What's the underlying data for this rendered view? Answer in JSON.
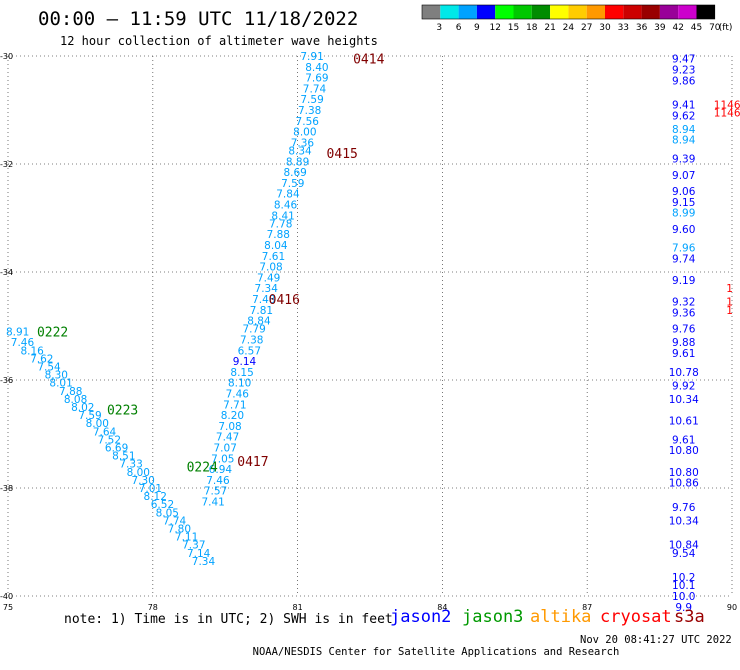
{
  "header": {
    "title": "00:00 – 11:59 UTC 11/18/2022",
    "subtitle": "12 hour collection of altimeter wave heights"
  },
  "colorbar": {
    "unit": "(ft)",
    "ticks": [
      "3",
      "6",
      "9",
      "12",
      "15",
      "18",
      "21",
      "24",
      "27",
      "30",
      "33",
      "36",
      "39",
      "42",
      "45",
      "70"
    ],
    "colors": [
      "#7f7f7f",
      "#00e8e8",
      "#00a2ff",
      "#0000ff",
      "#00ff00",
      "#00c800",
      "#008c00",
      "#ffff00",
      "#ffcc00",
      "#ff9900",
      "#ff0000",
      "#cc0000",
      "#990000",
      "#990099",
      "#cc00cc",
      "#000000"
    ]
  },
  "chart_data": {
    "type": "scatter",
    "xlim": [
      75,
      90
    ],
    "ylim": [
      -40,
      -30
    ],
    "xticks": [
      "75",
      "78",
      "81",
      "84",
      "87",
      "90"
    ],
    "yticks": [
      "-30",
      "-32",
      "-34",
      "-36",
      "-38",
      "-40"
    ],
    "grid": true,
    "series": [
      {
        "name": "jason2",
        "color": "#0000ff",
        "points": []
      },
      {
        "name": "jason3",
        "color": "#009900",
        "points": [
          {
            "x": 75.2,
            "y": -35.1,
            "v": "8.91"
          },
          {
            "x": 75.3,
            "y": -35.3,
            "v": "7.46"
          },
          {
            "x": 75.5,
            "y": -35.45,
            "v": "8.16"
          },
          {
            "x": 75.7,
            "y": -35.6,
            "v": "7.62"
          },
          {
            "x": 75.85,
            "y": -35.75,
            "v": "7.54"
          },
          {
            "x": 76.0,
            "y": -35.9,
            "v": "8.30"
          },
          {
            "x": 76.1,
            "y": -36.05,
            "v": "8.01"
          },
          {
            "x": 76.3,
            "y": -36.2,
            "v": "7.88"
          },
          {
            "x": 76.4,
            "y": -36.35,
            "v": "8.08"
          },
          {
            "x": 76.55,
            "y": -36.5,
            "v": "8.02"
          },
          {
            "x": 76.7,
            "y": -36.65,
            "v": "7.59"
          },
          {
            "x": 76.85,
            "y": -36.8,
            "v": "8.00"
          },
          {
            "x": 77.0,
            "y": -36.95,
            "v": "7.64"
          },
          {
            "x": 77.1,
            "y": -37.1,
            "v": "7.52"
          },
          {
            "x": 77.25,
            "y": -37.25,
            "v": "6.69"
          },
          {
            "x": 77.4,
            "y": -37.4,
            "v": "8.51"
          },
          {
            "x": 77.55,
            "y": -37.55,
            "v": "7.33"
          },
          {
            "x": 77.7,
            "y": -37.7,
            "v": "8.00"
          },
          {
            "x": 77.8,
            "y": -37.85,
            "v": "7.30"
          },
          {
            "x": 77.95,
            "y": -38.0,
            "v": "7.01"
          },
          {
            "x": 78.05,
            "y": -38.15,
            "v": "8.12"
          },
          {
            "x": 78.2,
            "y": -38.3,
            "v": "6.52"
          },
          {
            "x": 78.3,
            "y": -38.45,
            "v": "8.05"
          },
          {
            "x": 78.45,
            "y": -38.6,
            "v": "7.74"
          },
          {
            "x": 78.55,
            "y": -38.75,
            "v": "7.80"
          },
          {
            "x": 78.7,
            "y": -38.9,
            "v": "7.11"
          },
          {
            "x": 78.85,
            "y": -39.05,
            "v": "7.37"
          },
          {
            "x": 78.95,
            "y": -39.2,
            "v": "7.14"
          },
          {
            "x": 79.05,
            "y": -39.35,
            "v": "7.34"
          }
        ]
      },
      {
        "name": "altika",
        "color": "#ff9900",
        "points": []
      },
      {
        "name": "cryosat",
        "color": "#ff0000",
        "points": [
          {
            "x": 89.9,
            "y": -30.9,
            "v": "1146"
          },
          {
            "x": 89.9,
            "y": -31.05,
            "v": "1146"
          },
          {
            "x": 89.95,
            "y": -34.3,
            "v": "1"
          },
          {
            "x": 89.95,
            "y": -34.55,
            "v": "1"
          },
          {
            "x": 89.95,
            "y": -34.7,
            "v": "1"
          }
        ]
      },
      {
        "name": "s3a",
        "color": "#990000",
        "points": [
          {
            "x": 81.3,
            "y": -30.0,
            "v": "7.91"
          },
          {
            "x": 81.4,
            "y": -30.2,
            "v": "8.40"
          },
          {
            "x": 81.4,
            "y": -30.4,
            "v": "7.69"
          },
          {
            "x": 81.35,
            "y": -30.6,
            "v": "7.74"
          },
          {
            "x": 81.3,
            "y": -30.8,
            "v": "7.59"
          },
          {
            "x": 81.25,
            "y": -31.0,
            "v": "7.38"
          },
          {
            "x": 81.2,
            "y": -31.2,
            "v": "7.56"
          },
          {
            "x": 81.15,
            "y": -31.4,
            "v": "8.00"
          },
          {
            "x": 81.1,
            "y": -31.6,
            "v": "7.36"
          },
          {
            "x": 81.05,
            "y": -31.75,
            "v": "8.34"
          },
          {
            "x": 81.0,
            "y": -31.95,
            "v": "8.89"
          },
          {
            "x": 80.95,
            "y": -32.15,
            "v": "8.69"
          },
          {
            "x": 80.9,
            "y": -32.35,
            "v": "7.59"
          },
          {
            "x": 80.8,
            "y": -32.55,
            "v": "7.84"
          },
          {
            "x": 80.75,
            "y": -32.75,
            "v": "8.46"
          },
          {
            "x": 80.7,
            "y": -32.95,
            "v": "8.41"
          },
          {
            "x": 80.65,
            "y": -33.1,
            "v": "7.78"
          },
          {
            "x": 80.6,
            "y": -33.3,
            "v": "7.88"
          },
          {
            "x": 80.55,
            "y": -33.5,
            "v": "8.04"
          },
          {
            "x": 80.5,
            "y": -33.7,
            "v": "7.61"
          },
          {
            "x": 80.45,
            "y": -33.9,
            "v": "7.08"
          },
          {
            "x": 80.4,
            "y": -34.1,
            "v": "7.49"
          },
          {
            "x": 80.35,
            "y": -34.3,
            "v": "7.34"
          },
          {
            "x": 80.3,
            "y": -34.5,
            "v": "7.48"
          },
          {
            "x": 80.25,
            "y": -34.7,
            "v": "7.81"
          },
          {
            "x": 80.2,
            "y": -34.9,
            "v": "8.84"
          },
          {
            "x": 80.1,
            "y": -35.05,
            "v": "7.79"
          },
          {
            "x": 80.05,
            "y": -35.25,
            "v": "7.38"
          },
          {
            "x": 80.0,
            "y": -35.45,
            "v": "6.57"
          },
          {
            "x": 79.9,
            "y": -35.65,
            "v": "9.14"
          },
          {
            "x": 79.85,
            "y": -35.85,
            "v": "8.15"
          },
          {
            "x": 79.8,
            "y": -36.05,
            "v": "8.10"
          },
          {
            "x": 79.75,
            "y": -36.25,
            "v": "7.46"
          },
          {
            "x": 79.7,
            "y": -36.45,
            "v": "7.71"
          },
          {
            "x": 79.65,
            "y": -36.65,
            "v": "8.20"
          },
          {
            "x": 79.6,
            "y": -36.85,
            "v": "7.08"
          },
          {
            "x": 79.55,
            "y": -37.05,
            "v": "7.47"
          },
          {
            "x": 79.5,
            "y": -37.25,
            "v": "7.07"
          },
          {
            "x": 79.45,
            "y": -37.45,
            "v": "7.05"
          },
          {
            "x": 79.4,
            "y": -37.65,
            "v": "6.94"
          },
          {
            "x": 79.35,
            "y": -37.85,
            "v": "7.46"
          },
          {
            "x": 79.3,
            "y": -38.05,
            "v": "7.57"
          },
          {
            "x": 79.25,
            "y": -38.25,
            "v": "7.41"
          },
          {
            "x": 89.0,
            "y": -30.05,
            "v": "9.47"
          },
          {
            "x": 89.0,
            "y": -30.25,
            "v": "9.23"
          },
          {
            "x": 89.0,
            "y": -30.45,
            "v": "9.86"
          },
          {
            "x": 89.0,
            "y": -30.9,
            "v": "9.41"
          },
          {
            "x": 89.0,
            "y": -31.1,
            "v": "9.62"
          },
          {
            "x": 89.0,
            "y": -31.35,
            "v": "8.94"
          },
          {
            "x": 89.0,
            "y": -31.55,
            "v": "8.94"
          },
          {
            "x": 89.0,
            "y": -31.9,
            "v": "9.39"
          },
          {
            "x": 89.0,
            "y": -32.2,
            "v": "9.07"
          },
          {
            "x": 89.0,
            "y": -32.5,
            "v": "9.06"
          },
          {
            "x": 89.0,
            "y": -32.7,
            "v": "9.15"
          },
          {
            "x": 89.0,
            "y": -32.9,
            "v": "8.99"
          },
          {
            "x": 89.0,
            "y": -33.2,
            "v": "9.60"
          },
          {
            "x": 89.0,
            "y": -33.55,
            "v": "7.96"
          },
          {
            "x": 89.0,
            "y": -33.75,
            "v": "9.74"
          },
          {
            "x": 89.0,
            "y": -34.15,
            "v": "9.19"
          },
          {
            "x": 89.0,
            "y": -34.55,
            "v": "9.32"
          },
          {
            "x": 89.0,
            "y": -34.75,
            "v": "9.36"
          },
          {
            "x": 89.0,
            "y": -35.05,
            "v": "9.76"
          },
          {
            "x": 89.0,
            "y": -35.3,
            "v": "9.88"
          },
          {
            "x": 89.0,
            "y": -35.5,
            "v": "9.61"
          },
          {
            "x": 89.0,
            "y": -35.85,
            "v": "10.78"
          },
          {
            "x": 89.0,
            "y": -36.1,
            "v": "9.92"
          },
          {
            "x": 89.0,
            "y": -36.35,
            "v": "10.34"
          },
          {
            "x": 89.0,
            "y": -36.75,
            "v": "10.61"
          },
          {
            "x": 89.0,
            "y": -37.1,
            "v": "9.61"
          },
          {
            "x": 89.0,
            "y": -37.3,
            "v": "10.80"
          },
          {
            "x": 89.0,
            "y": -37.7,
            "v": "10.80"
          },
          {
            "x": 89.0,
            "y": -37.9,
            "v": "10.86"
          },
          {
            "x": 89.0,
            "y": -38.35,
            "v": "9.76"
          },
          {
            "x": 89.0,
            "y": -38.6,
            "v": "10.34"
          },
          {
            "x": 89.0,
            "y": -39.05,
            "v": "10.84"
          },
          {
            "x": 89.0,
            "y": -39.2,
            "v": "9.54"
          },
          {
            "x": 89.0,
            "y": -39.65,
            "v": "10.2"
          },
          {
            "x": 89.0,
            "y": -39.8,
            "v": "10.1"
          },
          {
            "x": 89.0,
            "y": -40.0,
            "v": "10.0"
          },
          {
            "x": 89.0,
            "y": -40.2,
            "v": "9.9"
          }
        ]
      }
    ],
    "time_labels": [
      {
        "x": 82.15,
        "y": -30.05,
        "text": "0414",
        "color": "#800000"
      },
      {
        "x": 81.6,
        "y": -31.8,
        "text": "0415",
        "color": "#800000"
      },
      {
        "x": 80.4,
        "y": -34.5,
        "text": "0416",
        "color": "#800000"
      },
      {
        "x": 79.75,
        "y": -37.5,
        "text": "0417",
        "color": "#800000"
      },
      {
        "x": 75.6,
        "y": -35.1,
        "text": "0222",
        "color": "#008000"
      },
      {
        "x": 77.05,
        "y": -36.55,
        "text": "0223",
        "color": "#008000"
      },
      {
        "x": 78.7,
        "y": -37.6,
        "text": "0224",
        "color": "#008000"
      }
    ]
  },
  "note": "note: 1) Time is in UTC; 2) SWH is in feet",
  "footer": {
    "credit": "NOAA/NESDIS Center for Satellite Applications and Research",
    "timestamp": "Nov 20 08:41:27 UTC 2022"
  }
}
